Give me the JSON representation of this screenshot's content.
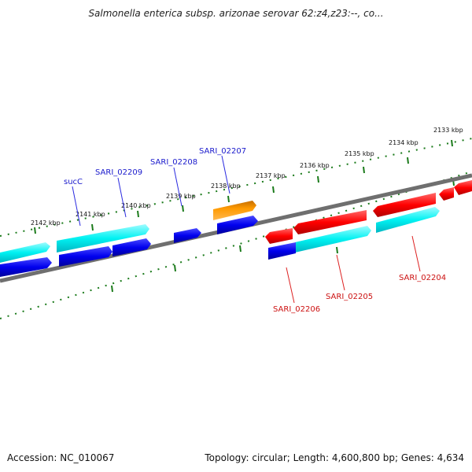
{
  "title": "Salmonella enterica subsp. arizonae serovar 62:z4,z23:--, co...",
  "scale_labels": [
    "2142 kbp",
    "2141 kbp",
    "2140 kbp",
    "2139 kbp",
    "2138 kbp",
    "2137 kbp",
    "2136 kbp",
    "2135 kbp",
    "2134 kbp",
    "2133 kbp"
  ],
  "gene_labels": {
    "sucC": "sucC",
    "sari_02209": "SARI_02209",
    "sari_02208": "SARI_02208",
    "sari_02207": "SARI_02207",
    "sari_02206": "SARI_02206",
    "sari_02205": "SARI_02205",
    "sari_02204": "SARI_02204"
  },
  "footer": {
    "accession": "Accession: NC_010067",
    "summary": "Topology: circular; Length: 4,600,800 bp; Genes: 4,634"
  },
  "colors": {
    "forward_cds": "#00ffff",
    "forward_gene": "#0000ee",
    "reverse_cds": "#ff0000",
    "other_gene": "#ff9900",
    "backbone": "#777777",
    "ticks": "#1a7a1a",
    "blue_label": "#1a1acc",
    "red_label": "#cc1111"
  }
}
